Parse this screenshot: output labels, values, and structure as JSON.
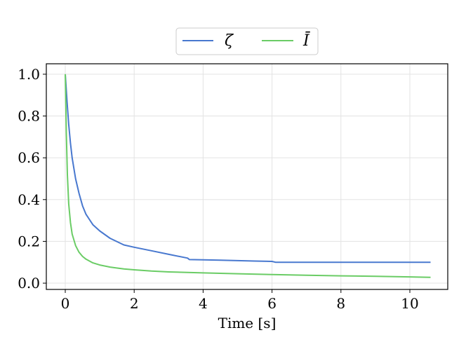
{
  "chart_data": {
    "type": "line",
    "title": "",
    "xlabel": "Time [s]",
    "ylabel": "",
    "xlim": [
      -0.55,
      11.1
    ],
    "ylim": [
      -0.03,
      1.05
    ],
    "xticks": [
      0,
      2,
      4,
      6,
      8,
      10
    ],
    "yticks": [
      0.0,
      0.2,
      0.4,
      0.6,
      0.8,
      1.0
    ],
    "xtick_labels": [
      "0",
      "2",
      "4",
      "6",
      "8",
      "10"
    ],
    "ytick_labels": [
      "0.0",
      "0.2",
      "0.4",
      "0.6",
      "0.8",
      "1.0"
    ],
    "grid": true,
    "legend": {
      "placement": "top-center-outside",
      "columns": 2
    },
    "series": [
      {
        "name": "ζ",
        "color": "#4878cf",
        "x": [
          0,
          0.05,
          0.1,
          0.15,
          0.2,
          0.3,
          0.4,
          0.5,
          0.6,
          0.8,
          1.0,
          1.3,
          1.7,
          2.0,
          2.5,
          3.0,
          3.55,
          3.6,
          4.0,
          4.5,
          5.0,
          5.5,
          6.0,
          6.1,
          7.0,
          8.0,
          9.0,
          10.0,
          10.6
        ],
        "y": [
          1.0,
          0.87,
          0.76,
          0.67,
          0.6,
          0.5,
          0.43,
          0.37,
          0.33,
          0.28,
          0.25,
          0.215,
          0.183,
          0.172,
          0.155,
          0.138,
          0.12,
          0.113,
          0.112,
          0.11,
          0.108,
          0.106,
          0.104,
          0.1,
          0.1,
          0.1,
          0.1,
          0.1,
          0.1
        ]
      },
      {
        "name": "Ī",
        "color": "#6acc65",
        "x": [
          0,
          0.03,
          0.06,
          0.1,
          0.15,
          0.2,
          0.3,
          0.4,
          0.5,
          0.6,
          0.8,
          1.0,
          1.3,
          1.7,
          2.0,
          2.5,
          3.0,
          4.0,
          5.0,
          6.0,
          7.0,
          8.0,
          9.0,
          10.0,
          10.6
        ],
        "y": [
          1.0,
          0.72,
          0.52,
          0.38,
          0.29,
          0.235,
          0.18,
          0.148,
          0.128,
          0.115,
          0.097,
          0.087,
          0.077,
          0.068,
          0.064,
          0.058,
          0.054,
          0.049,
          0.045,
          0.041,
          0.038,
          0.035,
          0.033,
          0.03,
          0.028
        ]
      }
    ]
  }
}
